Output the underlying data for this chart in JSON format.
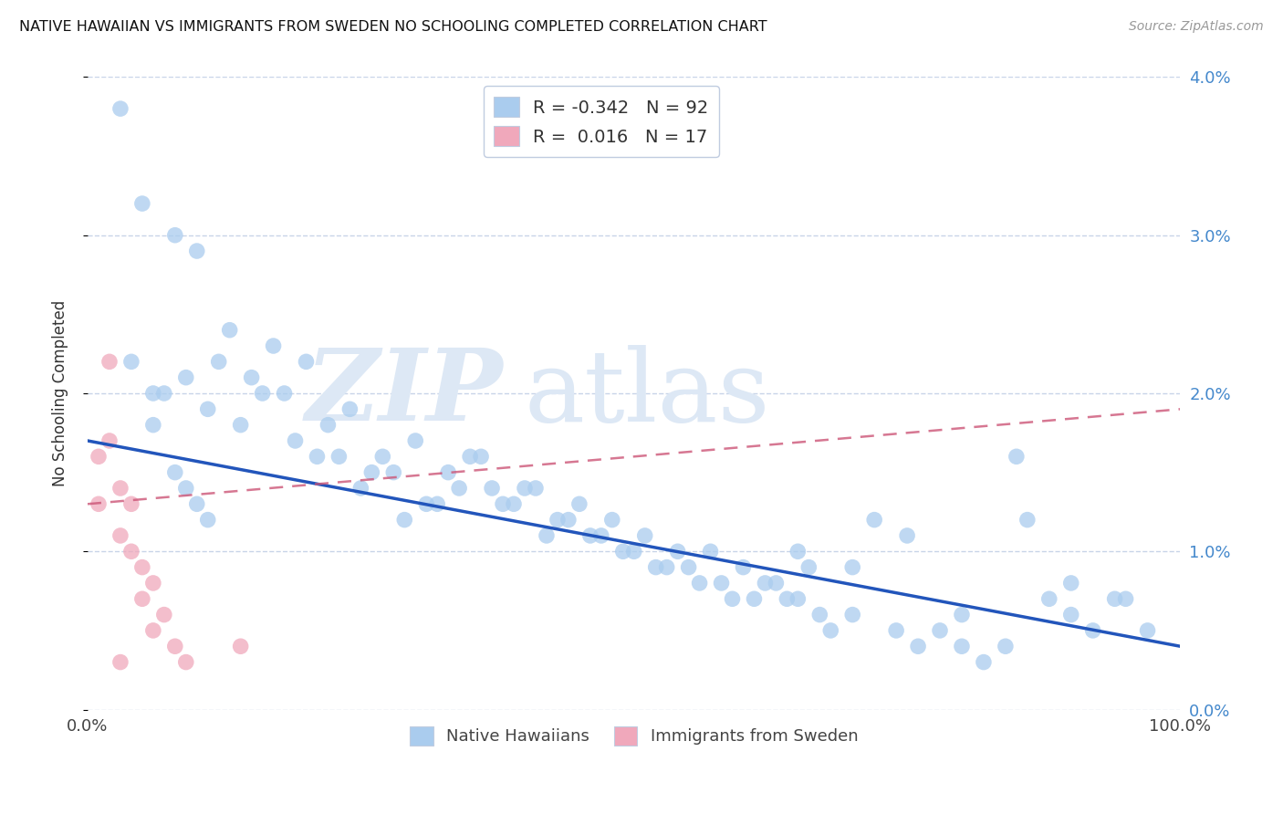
{
  "title": "NATIVE HAWAIIAN VS IMMIGRANTS FROM SWEDEN NO SCHOOLING COMPLETED CORRELATION CHART",
  "source": "Source: ZipAtlas.com",
  "ylabel": "No Schooling Completed",
  "xlim": [
    0,
    1.0
  ],
  "ylim": [
    0,
    0.04
  ],
  "yticks": [
    0.0,
    0.01,
    0.02,
    0.03,
    0.04
  ],
  "ytick_labels_right": [
    "0.0%",
    "1.0%",
    "2.0%",
    "3.0%",
    "4.0%"
  ],
  "xticks": [
    0.0,
    1.0
  ],
  "xtick_labels": [
    "0.0%",
    "100.0%"
  ],
  "series1_label": "Native Hawaiians",
  "series1_R": "-0.342",
  "series1_N": "92",
  "series1_color": "#aaccee",
  "series1_edge_color": "#7aaad0",
  "series1_line_color": "#2255bb",
  "series1_line_y0": 0.017,
  "series1_line_y1": 0.004,
  "series2_label": "Immigrants from Sweden",
  "series2_R": "0.016",
  "series2_N": "17",
  "series2_color": "#f0a8bb",
  "series2_edge_color": "#d080a0",
  "series2_line_color": "#cc5577",
  "series2_line_y0": 0.013,
  "series2_line_y1": 0.019,
  "background_color": "#ffffff",
  "grid_color": "#c8d4e8",
  "right_tick_color": "#4488cc",
  "legend_R_color": "#2255cc",
  "legend_border_color": "#c0cce0",
  "watermark_color": "#dde8f5",
  "blue_x": [
    0.03,
    0.05,
    0.08,
    0.1,
    0.12,
    0.13,
    0.15,
    0.17,
    0.18,
    0.2,
    0.04,
    0.07,
    0.09,
    0.11,
    0.14,
    0.16,
    0.19,
    0.21,
    0.22,
    0.24,
    0.25,
    0.27,
    0.28,
    0.3,
    0.31,
    0.33,
    0.34,
    0.36,
    0.37,
    0.39,
    0.4,
    0.42,
    0.43,
    0.45,
    0.46,
    0.48,
    0.49,
    0.51,
    0.52,
    0.54,
    0.55,
    0.57,
    0.58,
    0.6,
    0.61,
    0.63,
    0.64,
    0.66,
    0.67,
    0.35,
    0.38,
    0.41,
    0.44,
    0.47,
    0.5,
    0.53,
    0.56,
    0.59,
    0.62,
    0.65,
    0.68,
    0.7,
    0.72,
    0.74,
    0.76,
    0.78,
    0.8,
    0.82,
    0.84,
    0.86,
    0.88,
    0.9,
    0.65,
    0.7,
    0.75,
    0.8,
    0.85,
    0.9,
    0.92,
    0.94,
    0.95,
    0.97,
    0.32,
    0.26,
    0.23,
    0.29,
    0.06,
    0.06,
    0.08,
    0.09,
    0.1,
    0.11
  ],
  "blue_y": [
    0.038,
    0.032,
    0.03,
    0.029,
    0.022,
    0.024,
    0.021,
    0.023,
    0.02,
    0.022,
    0.022,
    0.02,
    0.021,
    0.019,
    0.018,
    0.02,
    0.017,
    0.016,
    0.018,
    0.019,
    0.014,
    0.016,
    0.015,
    0.017,
    0.013,
    0.015,
    0.014,
    0.016,
    0.014,
    0.013,
    0.014,
    0.011,
    0.012,
    0.013,
    0.011,
    0.012,
    0.01,
    0.011,
    0.009,
    0.01,
    0.009,
    0.01,
    0.008,
    0.009,
    0.007,
    0.008,
    0.007,
    0.009,
    0.006,
    0.016,
    0.013,
    0.014,
    0.012,
    0.011,
    0.01,
    0.009,
    0.008,
    0.007,
    0.008,
    0.007,
    0.005,
    0.006,
    0.012,
    0.005,
    0.004,
    0.005,
    0.004,
    0.003,
    0.004,
    0.012,
    0.007,
    0.008,
    0.01,
    0.009,
    0.011,
    0.006,
    0.016,
    0.006,
    0.005,
    0.007,
    0.007,
    0.005,
    0.013,
    0.015,
    0.016,
    0.012,
    0.02,
    0.018,
    0.015,
    0.014,
    0.013,
    0.012
  ],
  "pink_x": [
    0.01,
    0.01,
    0.02,
    0.02,
    0.03,
    0.03,
    0.04,
    0.04,
    0.05,
    0.05,
    0.06,
    0.06,
    0.07,
    0.08,
    0.09,
    0.14,
    0.03
  ],
  "pink_y": [
    0.016,
    0.013,
    0.022,
    0.017,
    0.014,
    0.011,
    0.013,
    0.01,
    0.009,
    0.007,
    0.008,
    0.005,
    0.006,
    0.004,
    0.003,
    0.004,
    0.003
  ]
}
